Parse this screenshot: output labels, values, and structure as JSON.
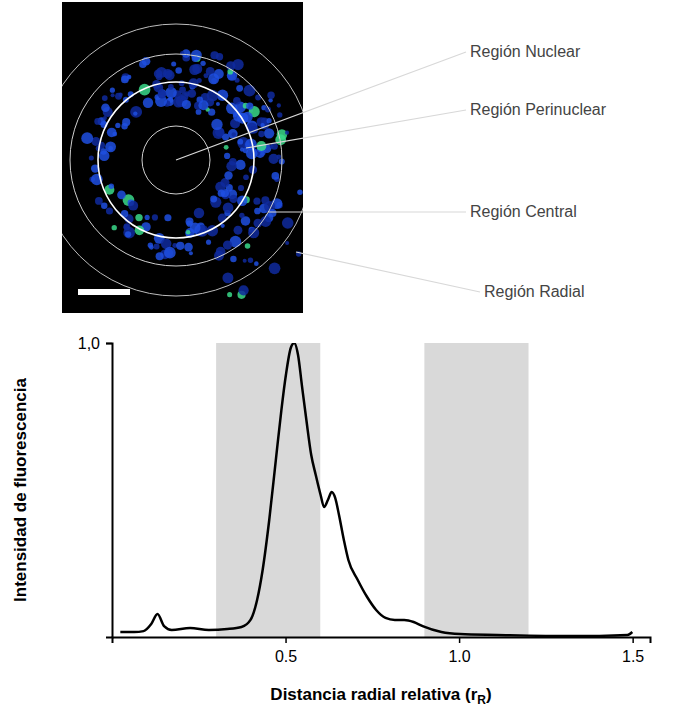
{
  "chart_data": {
    "type": "line",
    "y_label": "Intensidad de fluorescencia",
    "x_label": [
      "Distancia radial relativa (r",
      "R",
      ")"
    ],
    "x": [
      0.024,
      0.064,
      0.091,
      0.113,
      0.131,
      0.15,
      0.172,
      0.225,
      0.279,
      0.332,
      0.373,
      0.399,
      0.418,
      0.434,
      0.453,
      0.472,
      0.488,
      0.501,
      0.515,
      0.525,
      0.536,
      0.547,
      0.56,
      0.574,
      0.587,
      0.601,
      0.611,
      0.622,
      0.633,
      0.643,
      0.654,
      0.668,
      0.681,
      0.708,
      0.735,
      0.761,
      0.788,
      0.815,
      0.842,
      0.869,
      0.895,
      0.949,
      1.003,
      1.11,
      1.324,
      1.485,
      1.499
    ],
    "values": [
      0.017,
      0.017,
      0.02,
      0.044,
      0.078,
      0.037,
      0.024,
      0.031,
      0.024,
      0.027,
      0.034,
      0.058,
      0.126,
      0.228,
      0.398,
      0.602,
      0.772,
      0.891,
      0.983,
      1.0,
      0.959,
      0.857,
      0.738,
      0.619,
      0.551,
      0.483,
      0.442,
      0.466,
      0.493,
      0.473,
      0.415,
      0.33,
      0.262,
      0.194,
      0.136,
      0.092,
      0.065,
      0.058,
      0.058,
      0.051,
      0.037,
      0.017,
      0.01,
      0.007,
      0.003,
      0.007,
      0.017
    ],
    "color": "#000000",
    "xlim": [
      0,
      1.55
    ],
    "ylim": [
      0,
      1.0
    ],
    "xticks": [
      0.5,
      {
        "value": 1.0,
        "label": "1.0"
      },
      1.5
    ],
    "yticks": [
      {
        "value": 1.0,
        "label": "1,0"
      }
    ],
    "shaded_regions": [
      [
        0.3,
        0.6
      ],
      [
        0.9,
        1.2
      ]
    ],
    "grid": false
  },
  "image": {
    "region_labels": [
      "Región Nuclear",
      "Región Perinuclear",
      "Región Central",
      "Región Radial"
    ]
  }
}
